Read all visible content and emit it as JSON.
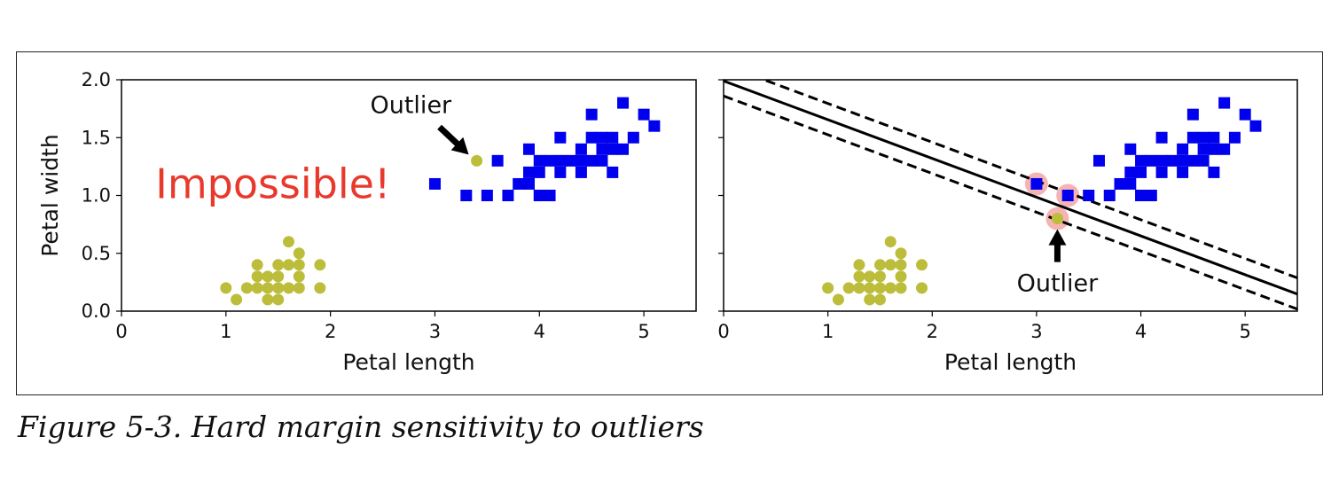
{
  "figure": {
    "caption": "Figure 5-3. Hard margin sensitivity to outliers"
  },
  "colors": {
    "setosa": "#bcbd3a",
    "versicolor": "#0000ee",
    "impossible": "#e8392c",
    "support_vector": "#f4a6a6"
  },
  "chart_data": [
    {
      "type": "scatter",
      "title": "",
      "xlabel": "Petal length",
      "ylabel": "Petal width",
      "xlim": [
        0,
        5.5
      ],
      "ylim": [
        0,
        2.0
      ],
      "xticks": [
        "0",
        "1",
        "2",
        "3",
        "4",
        "5"
      ],
      "yticks": [
        "0.0",
        "0.5",
        "1.0",
        "1.5",
        "2.0"
      ],
      "series": [
        {
          "marker": "circle",
          "color": "#bcbd3a",
          "points": [
            [
              1.0,
              0.2
            ],
            [
              1.1,
              0.1
            ],
            [
              1.2,
              0.2
            ],
            [
              1.3,
              0.2
            ],
            [
              1.3,
              0.3
            ],
            [
              1.3,
              0.4
            ],
            [
              1.4,
              0.1
            ],
            [
              1.4,
              0.2
            ],
            [
              1.4,
              0.3
            ],
            [
              1.5,
              0.1
            ],
            [
              1.5,
              0.2
            ],
            [
              1.5,
              0.3
            ],
            [
              1.5,
              0.4
            ],
            [
              1.6,
              0.2
            ],
            [
              1.6,
              0.4
            ],
            [
              1.6,
              0.6
            ],
            [
              1.7,
              0.2
            ],
            [
              1.7,
              0.3
            ],
            [
              1.7,
              0.4
            ],
            [
              1.7,
              0.5
            ],
            [
              1.9,
              0.2
            ],
            [
              1.9,
              0.4
            ]
          ]
        },
        {
          "marker": "square",
          "color": "#0000ee",
          "points": [
            [
              3.0,
              1.1
            ],
            [
              3.3,
              1.0
            ],
            [
              3.5,
              1.0
            ],
            [
              3.6,
              1.3
            ],
            [
              3.7,
              1.0
            ],
            [
              3.8,
              1.1
            ],
            [
              3.9,
              1.1
            ],
            [
              3.9,
              1.2
            ],
            [
              3.9,
              1.4
            ],
            [
              4.0,
              1.0
            ],
            [
              4.0,
              1.2
            ],
            [
              4.0,
              1.3
            ],
            [
              4.1,
              1.0
            ],
            [
              4.1,
              1.3
            ],
            [
              4.2,
              1.2
            ],
            [
              4.2,
              1.3
            ],
            [
              4.2,
              1.5
            ],
            [
              4.3,
              1.3
            ],
            [
              4.4,
              1.2
            ],
            [
              4.4,
              1.3
            ],
            [
              4.4,
              1.4
            ],
            [
              4.5,
              1.3
            ],
            [
              4.5,
              1.5
            ],
            [
              4.5,
              1.7
            ],
            [
              4.6,
              1.3
            ],
            [
              4.6,
              1.4
            ],
            [
              4.6,
              1.5
            ],
            [
              4.7,
              1.2
            ],
            [
              4.7,
              1.4
            ],
            [
              4.7,
              1.5
            ],
            [
              4.8,
              1.4
            ],
            [
              4.8,
              1.8
            ],
            [
              4.9,
              1.5
            ],
            [
              5.0,
              1.7
            ],
            [
              5.1,
              1.6
            ]
          ]
        },
        {
          "marker": "circle",
          "color": "#bcbd3a",
          "points": [
            [
              3.4,
              1.3
            ]
          ]
        }
      ],
      "annotations": [
        {
          "text": "Outlier",
          "xy": [
            3.4,
            1.3
          ],
          "xytext": [
            2.6,
            1.75
          ],
          "arrow": true
        },
        {
          "text": "Impossible!",
          "xy": [
            2.6,
            1.1
          ],
          "color": "#e8392c"
        }
      ]
    },
    {
      "type": "scatter",
      "title": "",
      "xlabel": "Petal length",
      "ylabel": "",
      "xlim": [
        0,
        5.5
      ],
      "ylim": [
        0,
        2.0
      ],
      "xticks": [
        "0",
        "1",
        "2",
        "3",
        "4",
        "5"
      ],
      "series": [
        {
          "marker": "circle",
          "color": "#bcbd3a",
          "points": [
            [
              1.0,
              0.2
            ],
            [
              1.1,
              0.1
            ],
            [
              1.2,
              0.2
            ],
            [
              1.3,
              0.2
            ],
            [
              1.3,
              0.3
            ],
            [
              1.3,
              0.4
            ],
            [
              1.4,
              0.1
            ],
            [
              1.4,
              0.2
            ],
            [
              1.4,
              0.3
            ],
            [
              1.5,
              0.1
            ],
            [
              1.5,
              0.2
            ],
            [
              1.5,
              0.3
            ],
            [
              1.5,
              0.4
            ],
            [
              1.6,
              0.2
            ],
            [
              1.6,
              0.4
            ],
            [
              1.6,
              0.6
            ],
            [
              1.7,
              0.2
            ],
            [
              1.7,
              0.3
            ],
            [
              1.7,
              0.4
            ],
            [
              1.7,
              0.5
            ],
            [
              1.9,
              0.2
            ],
            [
              1.9,
              0.4
            ]
          ]
        },
        {
          "marker": "square",
          "color": "#0000ee",
          "points": [
            [
              3.0,
              1.1
            ],
            [
              3.3,
              1.0
            ],
            [
              3.5,
              1.0
            ],
            [
              3.6,
              1.3
            ],
            [
              3.7,
              1.0
            ],
            [
              3.8,
              1.1
            ],
            [
              3.9,
              1.1
            ],
            [
              3.9,
              1.2
            ],
            [
              3.9,
              1.4
            ],
            [
              4.0,
              1.0
            ],
            [
              4.0,
              1.2
            ],
            [
              4.0,
              1.3
            ],
            [
              4.1,
              1.0
            ],
            [
              4.1,
              1.3
            ],
            [
              4.2,
              1.2
            ],
            [
              4.2,
              1.3
            ],
            [
              4.2,
              1.5
            ],
            [
              4.3,
              1.3
            ],
            [
              4.4,
              1.2
            ],
            [
              4.4,
              1.3
            ],
            [
              4.4,
              1.4
            ],
            [
              4.5,
              1.3
            ],
            [
              4.5,
              1.5
            ],
            [
              4.5,
              1.7
            ],
            [
              4.6,
              1.3
            ],
            [
              4.6,
              1.4
            ],
            [
              4.6,
              1.5
            ],
            [
              4.7,
              1.2
            ],
            [
              4.7,
              1.4
            ],
            [
              4.7,
              1.5
            ],
            [
              4.8,
              1.4
            ],
            [
              4.8,
              1.8
            ],
            [
              4.9,
              1.5
            ],
            [
              5.0,
              1.7
            ],
            [
              5.1,
              1.6
            ]
          ]
        },
        {
          "marker": "circle",
          "color": "#bcbd3a",
          "points": [
            [
              3.2,
              0.8
            ]
          ]
        }
      ],
      "support_vectors": [
        [
          3.0,
          1.1
        ],
        [
          3.3,
          1.0
        ],
        [
          3.2,
          0.8
        ]
      ],
      "decision_boundary": {
        "intercept": 1.99,
        "slope": -0.335
      },
      "margins": [
        {
          "intercept": 2.13,
          "slope": -0.335
        },
        {
          "intercept": 1.86,
          "slope": -0.335
        }
      ],
      "annotations": [
        {
          "text": "Outlier",
          "xy": [
            3.2,
            0.8
          ],
          "xytext": [
            3.2,
            0.25
          ],
          "arrow": true
        }
      ]
    }
  ]
}
